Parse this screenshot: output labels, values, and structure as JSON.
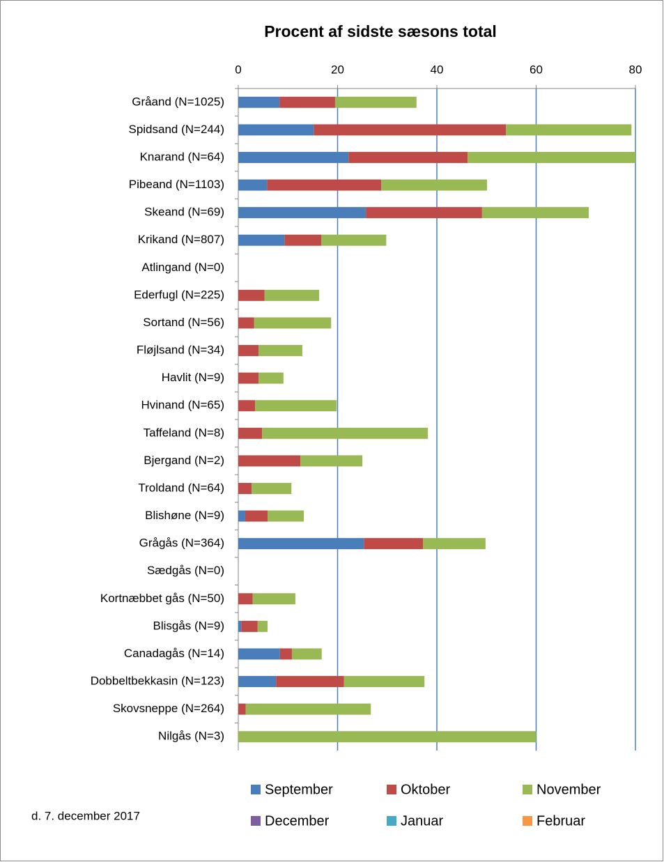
{
  "chart_data": {
    "type": "stacked-bar-horizontal",
    "title": "Procent af sidste sæsons total",
    "annotation": "d. 7. december  2017",
    "categories": [
      "Gråand (N=1025)",
      "Spidsand (N=244)",
      "Knarand (N=64)",
      "Pibeand (N=1103)",
      "Skeand (N=69)",
      "Krikand (N=807)",
      "Atlingand (N=0)",
      "Ederfugl (N=225)",
      "Sortand (N=56)",
      "Fløjlsand (N=34)",
      "Havlit (N=9)",
      "Hvinand (N=65)",
      "Taffeland (N=8)",
      "Bjergand (N=2)",
      "Troldand (N=64)",
      "Blishøne (N=9)",
      "Grågås (N=364)",
      "Sædgås (N=0)",
      "Kortnæbbet gås (N=50)",
      "Blisgås (N=9)",
      "Canadagås (N=14)",
      "Dobbeltbekkasin (N=123)",
      "Skovsneppe (N=264)",
      "Nilgås (N=3)"
    ],
    "series": [
      {
        "name": "September",
        "color": "#4a7ebb",
        "values": [
          8.3,
          15.2,
          22.2,
          5.8,
          25.7,
          9.3,
          0,
          0,
          0,
          0,
          0,
          0,
          0,
          0,
          0,
          1.4,
          25.3,
          0,
          0,
          0.6,
          8.4,
          7.6,
          0,
          0
        ]
      },
      {
        "name": "Oktober",
        "color": "#be4b48",
        "values": [
          11.2,
          38.7,
          24.0,
          23.0,
          23.4,
          7.4,
          0,
          5.3,
          3.2,
          4.1,
          4.1,
          3.4,
          4.8,
          12.5,
          2.7,
          4.5,
          11.9,
          0,
          2.9,
          3.3,
          2.4,
          13.7,
          1.5,
          0
        ]
      },
      {
        "name": "November",
        "color": "#98b954",
        "values": [
          16.4,
          25.3,
          33.8,
          21.3,
          21.5,
          13.1,
          0,
          11.0,
          15.5,
          8.8,
          5.0,
          16.4,
          33.4,
          12.5,
          8.0,
          7.3,
          12.6,
          0,
          8.6,
          2.0,
          6.0,
          16.2,
          25.2,
          60
        ]
      },
      {
        "name": "December",
        "color": "#7d5fa0",
        "values": [
          0,
          0,
          0,
          0,
          0,
          0,
          0,
          0,
          0,
          0,
          0,
          0,
          0,
          0,
          0,
          0,
          0,
          0,
          0,
          0,
          0,
          0,
          0,
          0
        ]
      },
      {
        "name": "Januar",
        "color": "#46aac5",
        "values": [
          0,
          0,
          0,
          0,
          0,
          0,
          0,
          0,
          0,
          0,
          0,
          0,
          0,
          0,
          0,
          0,
          0,
          0,
          0,
          0,
          0,
          0,
          0,
          0
        ]
      },
      {
        "name": "Februar",
        "color": "#f79646",
        "values": [
          0,
          0,
          0,
          0,
          0,
          0,
          0,
          0,
          0,
          0,
          0,
          0,
          0,
          0,
          0,
          0,
          0,
          0,
          0,
          0,
          0,
          0,
          0,
          0
        ]
      }
    ],
    "xlim": [
      0,
      80
    ],
    "xticks": [
      0,
      20,
      40,
      60,
      80
    ],
    "grid": true,
    "grid_color": "#4a7ebb"
  }
}
